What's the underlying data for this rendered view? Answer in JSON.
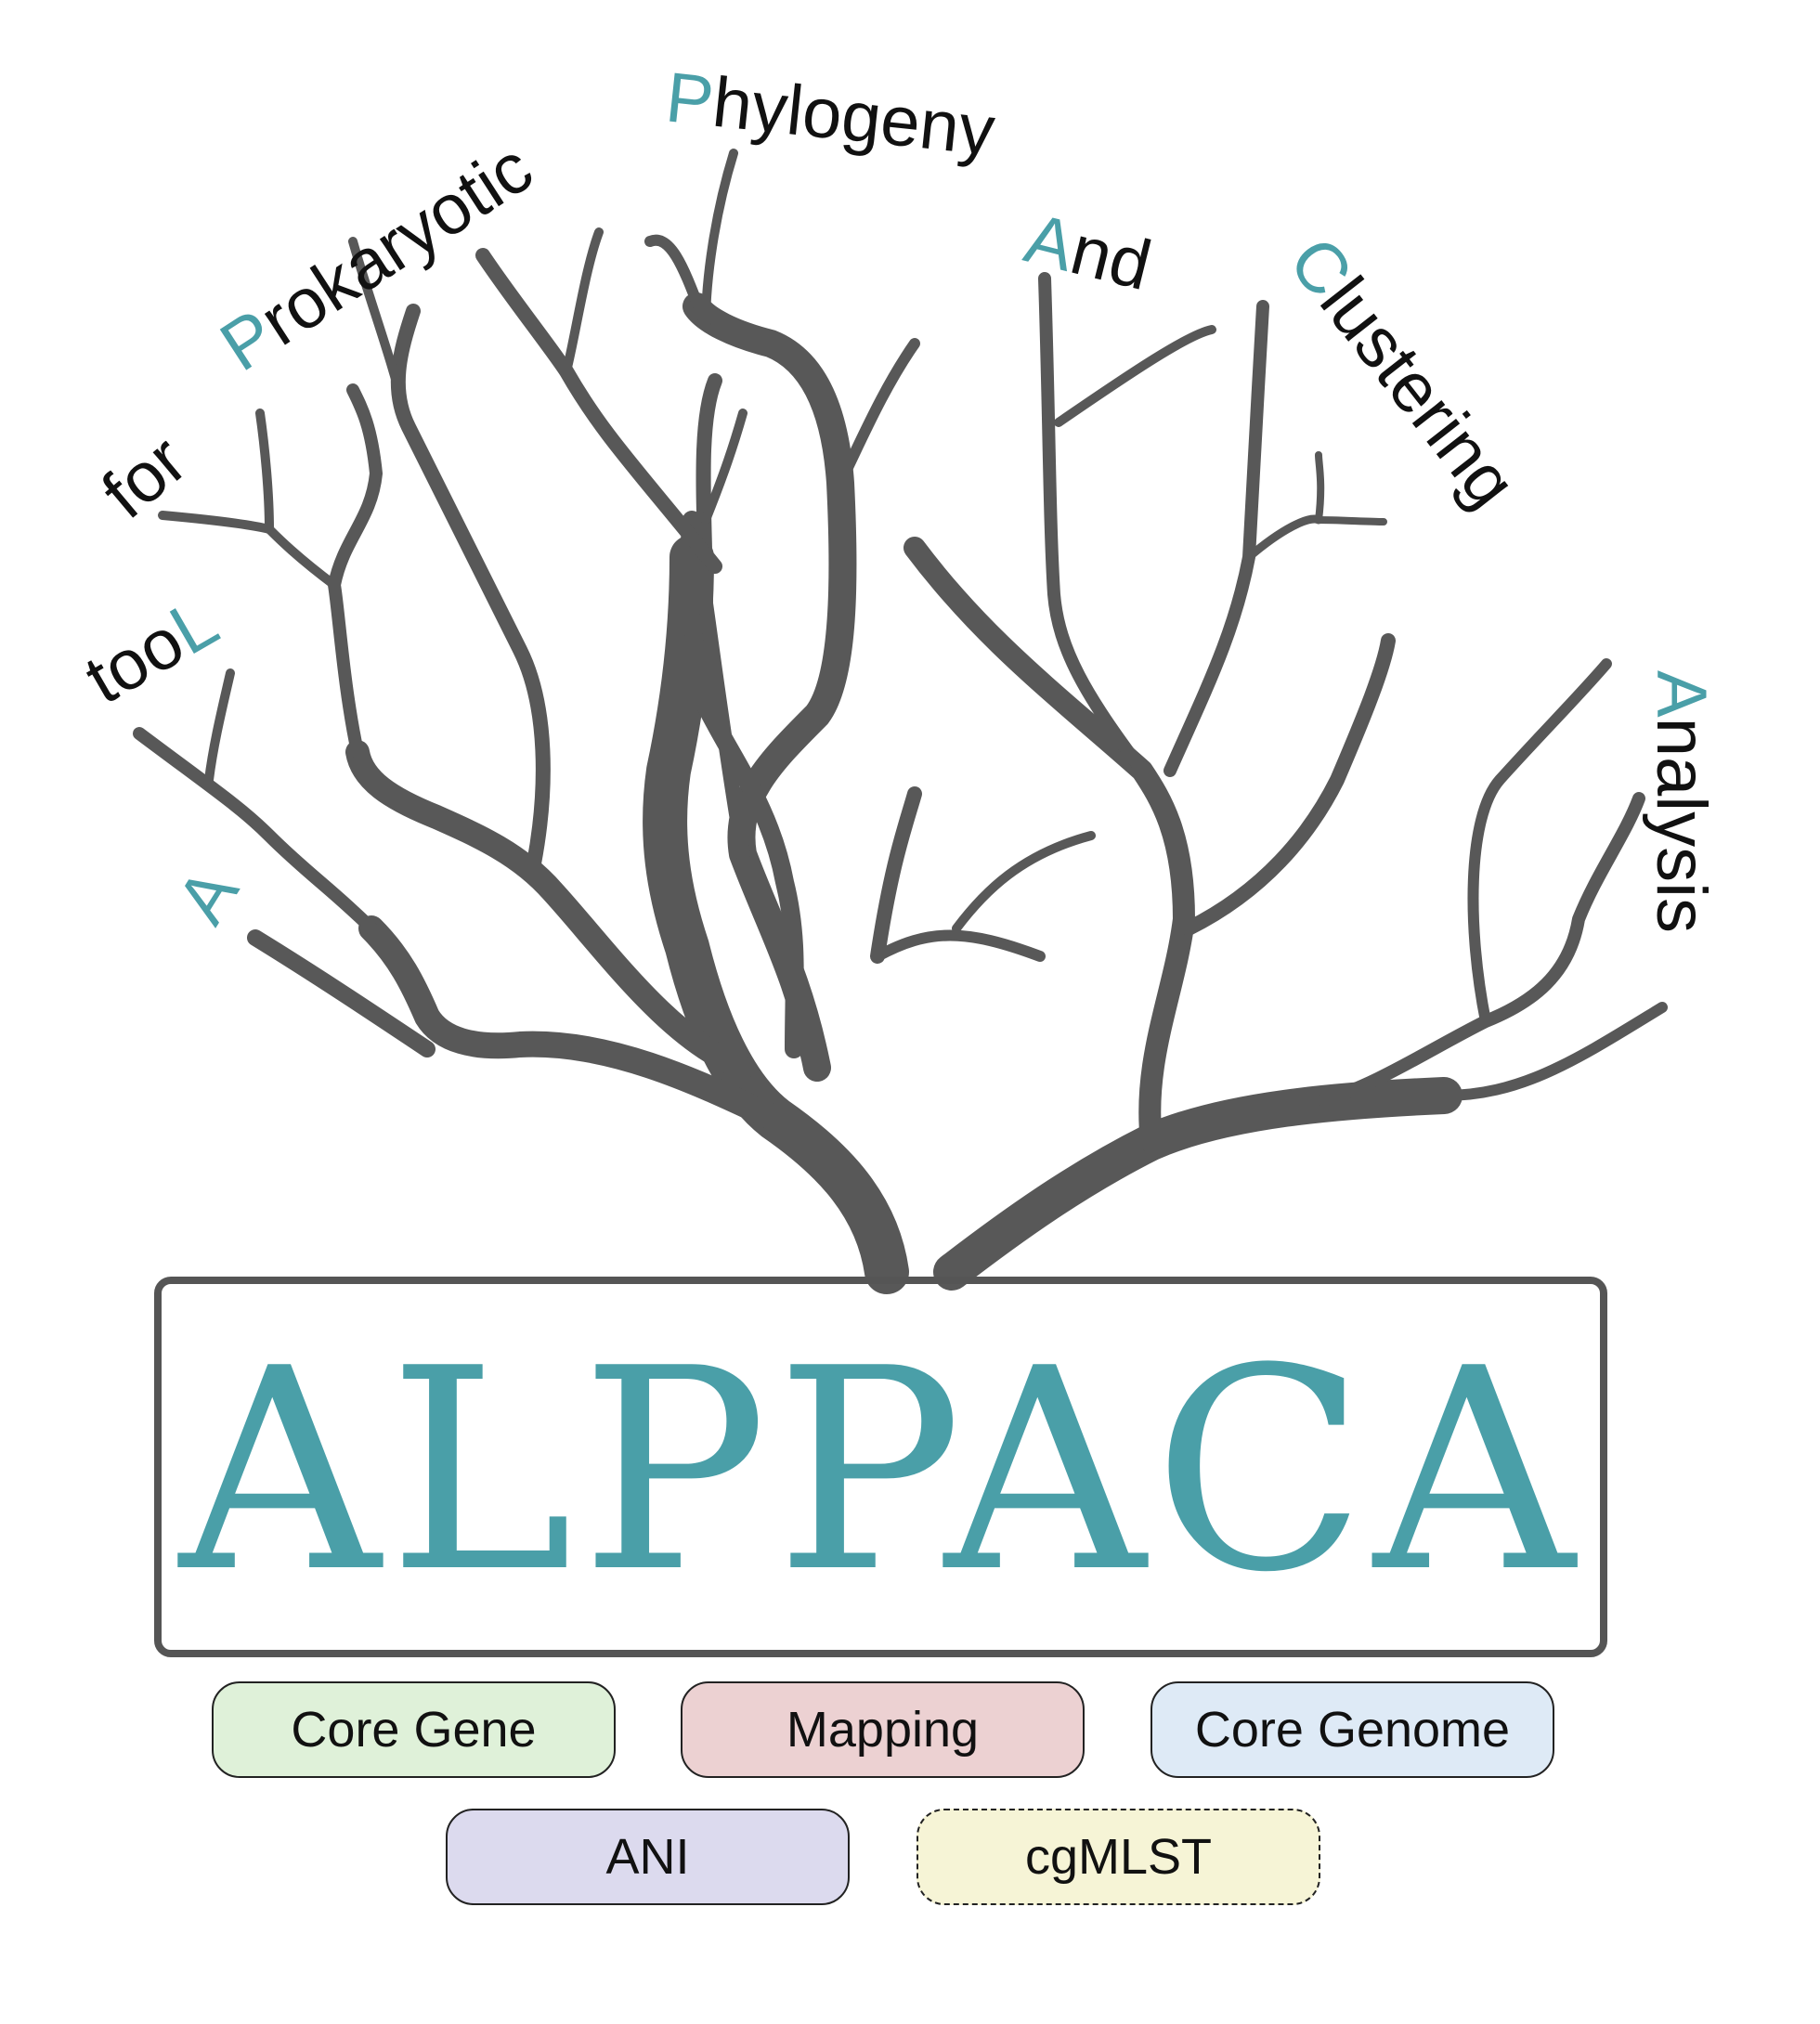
{
  "logo": {
    "title": "ALPPACA",
    "accent_color": "#4a9fa8",
    "tree_color": "#585858"
  },
  "tree_words": [
    {
      "id": "a",
      "cap": "A",
      "rest": ""
    },
    {
      "id": "tool",
      "cap": "",
      "rest": "too",
      "suffix": "L"
    },
    {
      "id": "for",
      "cap": "",
      "rest": "for"
    },
    {
      "id": "prokaryotic",
      "cap": "P",
      "rest": "rokaryotic"
    },
    {
      "id": "phylogeny",
      "cap": "P",
      "rest": "hylogeny"
    },
    {
      "id": "and",
      "cap": "A",
      "rest": "nd"
    },
    {
      "id": "clustering",
      "cap": "C",
      "rest": "lustering"
    },
    {
      "id": "analysis",
      "cap": "A",
      "rest": "nalysis"
    }
  ],
  "methods": [
    {
      "label": "Core Gene",
      "color": "#dff1d9",
      "border": "solid"
    },
    {
      "label": "Mapping",
      "color": "#ecd1d2",
      "border": "solid"
    },
    {
      "label": "Core Genome",
      "color": "#deeaf6",
      "border": "solid"
    },
    {
      "label": "ANI",
      "color": "#dcdaee",
      "border": "solid"
    },
    {
      "label": "cgMLST",
      "color": "#f6f4d6",
      "border": "dashed"
    }
  ]
}
